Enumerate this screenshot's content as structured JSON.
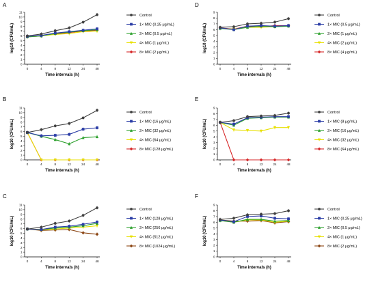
{
  "figure": {
    "panels": [
      {
        "letter": "A",
        "ylabel": "log10 (CFU/mL)",
        "xlabel": "Time intervals (h)",
        "xticks": [
          "0",
          "4",
          "8",
          "12",
          "24",
          "48"
        ],
        "yticks": [
          "0",
          "1",
          "2",
          "3",
          "4",
          "5",
          "6",
          "7",
          "8",
          "9",
          "10",
          "11"
        ],
        "ylim": [
          0,
          11
        ],
        "series": [
          {
            "name": "Control",
            "color": "#404040",
            "marker": "circle",
            "values": [
              6.0,
              6.4,
              7.1,
              7.7,
              8.9,
              10.5
            ]
          },
          {
            "name": "1× MIC (0.25 μg/mL)",
            "color": "#2b3da6",
            "marker": "square",
            "values": [
              5.9,
              6.1,
              6.6,
              6.9,
              7.2,
              7.5
            ]
          },
          {
            "name": "2× MIC (0.5 μg/mL)",
            "color": "#2ca02c",
            "marker": "triangle",
            "values": [
              5.8,
              6.0,
              6.5,
              6.8,
              7.1,
              7.3
            ]
          },
          {
            "name": "4× MIC (1 μg/mL)",
            "color": "#e8e000",
            "marker": "triangle-down",
            "values": [
              5.8,
              6.0,
              6.3,
              6.5,
              6.9,
              7.0
            ]
          },
          {
            "name": "8× MIC (2 μg/mL)",
            "color": "#d62728",
            "marker": "diamond",
            "values": [
              5.8,
              6.0,
              6.4,
              6.7,
              7.0,
              7.2
            ]
          }
        ]
      },
      {
        "letter": "D",
        "ylabel": "log10 (CFU/mL)",
        "xlabel": "Time intervals (h)",
        "xticks": [
          "0",
          "4",
          "8",
          "12",
          "24",
          "48"
        ],
        "yticks": [
          "0",
          "1",
          "2",
          "3",
          "4",
          "5",
          "6",
          "7",
          "8",
          "9"
        ],
        "ylim": [
          0,
          9
        ],
        "series": [
          {
            "name": "Control",
            "color": "#404040",
            "marker": "circle",
            "values": [
              6.4,
              6.5,
              7.0,
              7.1,
              7.3,
              7.9
            ]
          },
          {
            "name": "1× MIC (0.5 μg/mL)",
            "color": "#2b3da6",
            "marker": "square",
            "values": [
              6.3,
              6.0,
              6.6,
              6.7,
              6.6,
              6.7
            ]
          },
          {
            "name": "2× MIC (1 μg/mL)",
            "color": "#2ca02c",
            "marker": "triangle",
            "values": [
              6.2,
              6.0,
              6.4,
              6.6,
              6.5,
              6.6
            ]
          },
          {
            "name": "4× MIC (2 μg/mL)",
            "color": "#e8e000",
            "marker": "triangle-down",
            "values": [
              6.2,
              6.1,
              6.4,
              6.4,
              6.5,
              6.6
            ]
          },
          {
            "name": "8× MIC (4 μg/mL)",
            "color": "#d62728",
            "marker": "diamond",
            "values": [
              6.3,
              6.1,
              6.6,
              6.5,
              6.7,
              6.7
            ]
          }
        ]
      },
      {
        "letter": "B",
        "ylabel": "log10 (CFU/mL)",
        "xlabel": "Time intervals (h)",
        "xticks": [
          "0",
          "4",
          "8",
          "12",
          "24",
          "48"
        ],
        "yticks": [
          "0",
          "1",
          "2",
          "3",
          "4",
          "5",
          "6",
          "7",
          "8",
          "9",
          "10",
          "11"
        ],
        "ylim": [
          0,
          11
        ],
        "series": [
          {
            "name": "Control",
            "color": "#404040",
            "marker": "circle",
            "values": [
              5.8,
              6.4,
              7.2,
              7.7,
              8.9,
              10.5
            ]
          },
          {
            "name": "1× MIC (16 μg/mL)",
            "color": "#2b3da6",
            "marker": "square",
            "values": [
              5.8,
              5.1,
              5.2,
              5.4,
              6.5,
              6.8
            ]
          },
          {
            "name": "2× MIC (32 μg/mL)",
            "color": "#2ca02c",
            "marker": "triangle",
            "values": [
              5.8,
              5.0,
              4.3,
              3.4,
              4.7,
              4.9
            ]
          },
          {
            "name": "4× MIC (64 μg/mL)",
            "color": "#e8e000",
            "marker": "triangle-down",
            "values": [
              5.8,
              0,
              0,
              0,
              0,
              0
            ]
          },
          {
            "name": "8× MIC (128 μg/mL)",
            "color": "#d62728",
            "marker": "diamond",
            "values": [
              5.8,
              0,
              0,
              0,
              0,
              0
            ]
          }
        ]
      },
      {
        "letter": "E",
        "ylabel": "log10 (CFU/mL)",
        "xlabel": "Time intervals (h)",
        "xticks": [
          "0",
          "4",
          "8",
          "12",
          "24",
          "48"
        ],
        "yticks": [
          "0",
          "1",
          "2",
          "3",
          "4",
          "5",
          "6",
          "7",
          "8",
          "9"
        ],
        "ylim": [
          0,
          9
        ],
        "series": [
          {
            "name": "Control",
            "color": "#404040",
            "marker": "circle",
            "values": [
              6.5,
              6.8,
              7.5,
              7.6,
              7.7,
              8.1
            ]
          },
          {
            "name": "1× MIC (8 μg/mL)",
            "color": "#2b3da6",
            "marker": "square",
            "values": [
              6.5,
              6.2,
              7.3,
              7.4,
              7.5,
              7.5
            ]
          },
          {
            "name": "2× MIC (16 μg/mL)",
            "color": "#2ca02c",
            "marker": "triangle",
            "values": [
              6.5,
              6.0,
              7.2,
              7.3,
              7.4,
              7.4
            ]
          },
          {
            "name": "4× MIC (32 μg/mL)",
            "color": "#e8e000",
            "marker": "triangle-down",
            "values": [
              6.5,
              5.2,
              5.1,
              5.0,
              5.6,
              5.6
            ]
          },
          {
            "name": "8× MIC (64 μg/mL)",
            "color": "#d62728",
            "marker": "diamond",
            "values": [
              6.5,
              0,
              0,
              0,
              0,
              0
            ]
          }
        ]
      },
      {
        "letter": "C",
        "ylabel": "log10 (CFU/mL)",
        "xlabel": "Time intervals (h)",
        "xticks": [
          "0",
          "4",
          "8",
          "12",
          "24",
          "48"
        ],
        "yticks": [
          "0",
          "1",
          "2",
          "3",
          "4",
          "5",
          "6",
          "7",
          "8",
          "9",
          "10",
          "11"
        ],
        "ylim": [
          0,
          11
        ],
        "series": [
          {
            "name": "Control",
            "color": "#404040",
            "marker": "circle",
            "values": [
              5.9,
              6.3,
              7.1,
              7.6,
              8.8,
              10.4
            ]
          },
          {
            "name": "1× MIC (128 μg/mL)",
            "color": "#2b3da6",
            "marker": "square",
            "values": [
              5.9,
              5.8,
              6.3,
              6.5,
              6.9,
              7.4
            ]
          },
          {
            "name": "2× MIC (256 μg/mL)",
            "color": "#2ca02c",
            "marker": "triangle",
            "values": [
              5.9,
              5.8,
              6.1,
              6.3,
              6.6,
              7.1
            ]
          },
          {
            "name": "4× MIC (512 μg/mL)",
            "color": "#e8e000",
            "marker": "triangle-down",
            "values": [
              5.9,
              5.7,
              5.9,
              6.1,
              6.3,
              6.6
            ]
          },
          {
            "name": "8× MIC (1024 μg/mL)",
            "color": "#8b4513",
            "marker": "diamond",
            "values": [
              5.9,
              5.6,
              5.7,
              5.8,
              5.1,
              4.8
            ]
          }
        ]
      },
      {
        "letter": "F",
        "ylabel": "log10 (CFU/mL)",
        "xlabel": "Time intervals (h)",
        "xticks": [
          "0",
          "4",
          "8",
          "12",
          "24",
          "48"
        ],
        "yticks": [
          "0",
          "1",
          "2",
          "3",
          "4",
          "5",
          "6",
          "7",
          "8",
          "9"
        ],
        "ylim": [
          0,
          9
        ],
        "series": [
          {
            "name": "Control",
            "color": "#404040",
            "marker": "circle",
            "values": [
              6.5,
              6.7,
              7.3,
              7.4,
              7.5,
              8.0
            ]
          },
          {
            "name": "1× MIC (0.25 μg/mL)",
            "color": "#2b3da6",
            "marker": "square",
            "values": [
              6.4,
              6.1,
              7.0,
              7.1,
              6.7,
              6.6
            ]
          },
          {
            "name": "2× MIC (0.5 μg/mL)",
            "color": "#2ca02c",
            "marker": "triangle",
            "values": [
              6.3,
              6.0,
              6.5,
              6.5,
              6.2,
              6.3
            ]
          },
          {
            "name": "4× MIC (1 μg/mL)",
            "color": "#e8e000",
            "marker": "triangle-down",
            "values": [
              6.3,
              6.0,
              6.4,
              6.4,
              6.0,
              6.2
            ]
          },
          {
            "name": "8× MIC (2 μg/mL)",
            "color": "#8b4513",
            "marker": "diamond",
            "values": [
              6.4,
              6.2,
              6.2,
              6.3,
              5.9,
              6.1
            ]
          }
        ]
      }
    ]
  },
  "chart_data": [
    {
      "type": "line",
      "panel": "A",
      "x": [
        "0",
        "4",
        "8",
        "12",
        "24",
        "48"
      ],
      "xlabel": "Time intervals (h)",
      "ylabel": "log10 (CFU/mL)",
      "ylim": [
        0,
        11
      ],
      "legend": "right",
      "series": [
        {
          "name": "Control",
          "values": [
            6.0,
            6.4,
            7.1,
            7.7,
            8.9,
            10.5
          ]
        },
        {
          "name": "1× MIC (0.25 μg/mL)",
          "values": [
            5.9,
            6.1,
            6.6,
            6.9,
            7.2,
            7.5
          ]
        },
        {
          "name": "2× MIC (0.5 μg/mL)",
          "values": [
            5.8,
            6.0,
            6.5,
            6.8,
            7.1,
            7.3
          ]
        },
        {
          "name": "4× MIC (1 μg/mL)",
          "values": [
            5.8,
            6.0,
            6.3,
            6.5,
            6.9,
            7.0
          ]
        },
        {
          "name": "8× MIC (2 μg/mL)",
          "values": [
            5.8,
            6.0,
            6.4,
            6.7,
            7.0,
            7.2
          ]
        }
      ]
    },
    {
      "type": "line",
      "panel": "D",
      "x": [
        "0",
        "4",
        "8",
        "12",
        "24",
        "48"
      ],
      "xlabel": "Time intervals (h)",
      "ylabel": "log10 (CFU/mL)",
      "ylim": [
        0,
        9
      ],
      "legend": "right",
      "series": [
        {
          "name": "Control",
          "values": [
            6.4,
            6.5,
            7.0,
            7.1,
            7.3,
            7.9
          ]
        },
        {
          "name": "1× MIC (0.5 μg/mL)",
          "values": [
            6.3,
            6.0,
            6.6,
            6.7,
            6.6,
            6.7
          ]
        },
        {
          "name": "2× MIC (1 μg/mL)",
          "values": [
            6.2,
            6.0,
            6.4,
            6.6,
            6.5,
            6.6
          ]
        },
        {
          "name": "4× MIC (2 μg/mL)",
          "values": [
            6.2,
            6.1,
            6.4,
            6.4,
            6.5,
            6.6
          ]
        },
        {
          "name": "8× MIC (4 μg/mL)",
          "values": [
            6.3,
            6.1,
            6.6,
            6.5,
            6.7,
            6.7
          ]
        }
      ]
    },
    {
      "type": "line",
      "panel": "B",
      "x": [
        "0",
        "4",
        "8",
        "12",
        "24",
        "48"
      ],
      "xlabel": "Time intervals (h)",
      "ylabel": "log10 (CFU/mL)",
      "ylim": [
        0,
        11
      ],
      "legend": "right",
      "series": [
        {
          "name": "Control",
          "values": [
            5.8,
            6.4,
            7.2,
            7.7,
            8.9,
            10.5
          ]
        },
        {
          "name": "1× MIC (16 μg/mL)",
          "values": [
            5.8,
            5.1,
            5.2,
            5.4,
            6.5,
            6.8
          ]
        },
        {
          "name": "2× MIC (32 μg/mL)",
          "values": [
            5.8,
            5.0,
            4.3,
            3.4,
            4.7,
            4.9
          ]
        },
        {
          "name": "4× MIC (64 μg/mL)",
          "values": [
            5.8,
            0,
            0,
            0,
            0,
            0
          ]
        },
        {
          "name": "8× MIC (128 μg/mL)",
          "values": [
            5.8,
            0,
            0,
            0,
            0,
            0
          ]
        }
      ]
    },
    {
      "type": "line",
      "panel": "E",
      "x": [
        "0",
        "4",
        "8",
        "12",
        "24",
        "48"
      ],
      "xlabel": "Time intervals (h)",
      "ylabel": "log10 (CFU/mL)",
      "ylim": [
        0,
        9
      ],
      "legend": "right",
      "series": [
        {
          "name": "Control",
          "values": [
            6.5,
            6.8,
            7.5,
            7.6,
            7.7,
            8.1
          ]
        },
        {
          "name": "1× MIC (8 μg/mL)",
          "values": [
            6.5,
            6.2,
            7.3,
            7.4,
            7.5,
            7.5
          ]
        },
        {
          "name": "2× MIC (16 μg/mL)",
          "values": [
            6.5,
            6.0,
            7.2,
            7.3,
            7.4,
            7.4
          ]
        },
        {
          "name": "4× MIC (32 μg/mL)",
          "values": [
            6.5,
            5.2,
            5.1,
            5.0,
            5.6,
            5.6
          ]
        },
        {
          "name": "8× MIC (64 μg/mL)",
          "values": [
            6.5,
            0,
            0,
            0,
            0,
            0
          ]
        }
      ]
    },
    {
      "type": "line",
      "panel": "C",
      "x": [
        "0",
        "4",
        "8",
        "12",
        "24",
        "48"
      ],
      "xlabel": "Time intervals (h)",
      "ylabel": "log10 (CFU/mL)",
      "ylim": [
        0,
        11
      ],
      "legend": "right",
      "series": [
        {
          "name": "Control",
          "values": [
            5.9,
            6.3,
            7.1,
            7.6,
            8.8,
            10.4
          ]
        },
        {
          "name": "1× MIC (128 μg/mL)",
          "values": [
            5.9,
            5.8,
            6.3,
            6.5,
            6.9,
            7.4
          ]
        },
        {
          "name": "2× MIC (256 μg/mL)",
          "values": [
            5.9,
            5.8,
            6.1,
            6.3,
            6.6,
            7.1
          ]
        },
        {
          "name": "4× MIC (512 μg/mL)",
          "values": [
            5.9,
            5.7,
            5.9,
            6.1,
            6.3,
            6.6
          ]
        },
        {
          "name": "8× MIC (1024 μg/mL)",
          "values": [
            5.9,
            5.6,
            5.7,
            5.8,
            5.1,
            4.8
          ]
        }
      ]
    },
    {
      "type": "line",
      "panel": "F",
      "x": [
        "0",
        "4",
        "8",
        "12",
        "24",
        "48"
      ],
      "xlabel": "Time intervals (h)",
      "ylabel": "log10 (CFU/mL)",
      "ylim": [
        0,
        9
      ],
      "legend": "right",
      "series": [
        {
          "name": "Control",
          "values": [
            6.5,
            6.7,
            7.3,
            7.4,
            7.5,
            8.0
          ]
        },
        {
          "name": "1× MIC (0.25 μg/mL)",
          "values": [
            6.4,
            6.1,
            7.0,
            7.1,
            6.7,
            6.6
          ]
        },
        {
          "name": "2× MIC (0.5 μg/mL)",
          "values": [
            6.3,
            6.0,
            6.5,
            6.5,
            6.2,
            6.3
          ]
        },
        {
          "name": "4× MIC (1 μg/mL)",
          "values": [
            6.3,
            6.0,
            6.4,
            6.4,
            6.0,
            6.2
          ]
        },
        {
          "name": "8× MIC (2 μg/mL)",
          "values": [
            6.4,
            6.2,
            6.2,
            6.3,
            5.9,
            6.1
          ]
        }
      ]
    }
  ]
}
